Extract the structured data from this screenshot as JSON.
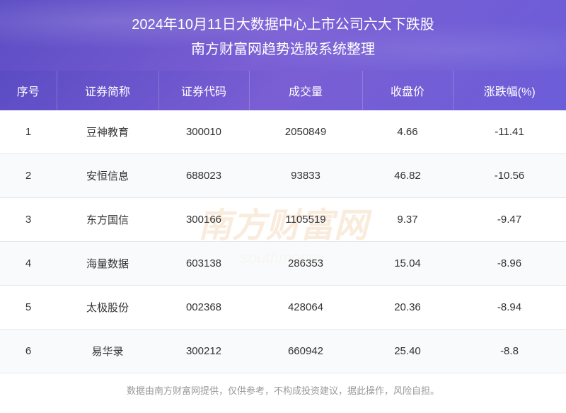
{
  "header": {
    "title_line1": "2024年10月11日大数据中心上市公司六大下跌股",
    "title_line2": "南方财富网趋势选股系统整理"
  },
  "table": {
    "columns": [
      "序号",
      "证券简称",
      "证券代码",
      "成交量",
      "收盘价",
      "涨跌幅(%)"
    ],
    "rows": [
      {
        "index": "1",
        "name": "豆神教育",
        "code": "300010",
        "volume": "2050849",
        "price": "4.66",
        "change": "-11.41"
      },
      {
        "index": "2",
        "name": "安恒信息",
        "code": "688023",
        "volume": "93833",
        "price": "46.82",
        "change": "-10.56"
      },
      {
        "index": "3",
        "name": "东方国信",
        "code": "300166",
        "volume": "1105519",
        "price": "9.37",
        "change": "-9.47"
      },
      {
        "index": "4",
        "name": "海量数据",
        "code": "603138",
        "volume": "286353",
        "price": "15.04",
        "change": "-8.96"
      },
      {
        "index": "5",
        "name": "太极股份",
        "code": "002368",
        "volume": "428064",
        "price": "20.36",
        "change": "-8.94"
      },
      {
        "index": "6",
        "name": "易华录",
        "code": "300212",
        "volume": "660942",
        "price": "25.40",
        "change": "-8.8"
      }
    ]
  },
  "watermark": {
    "main": "南方财富网",
    "sub": "southmoney"
  },
  "footer": {
    "text": "数据由南方财富网提供，仅供参考，不构成投资建议，据此操作，风险自担。"
  },
  "styling": {
    "header_bg_start": "#5b4cc4",
    "header_bg_end": "#6b5dd8",
    "text_color": "#333333",
    "border_color": "#e8e8e8",
    "even_row_bg": "#f7f8fa",
    "watermark_color": "rgba(230, 180, 120, 0.25)",
    "footer_color": "#999999"
  }
}
